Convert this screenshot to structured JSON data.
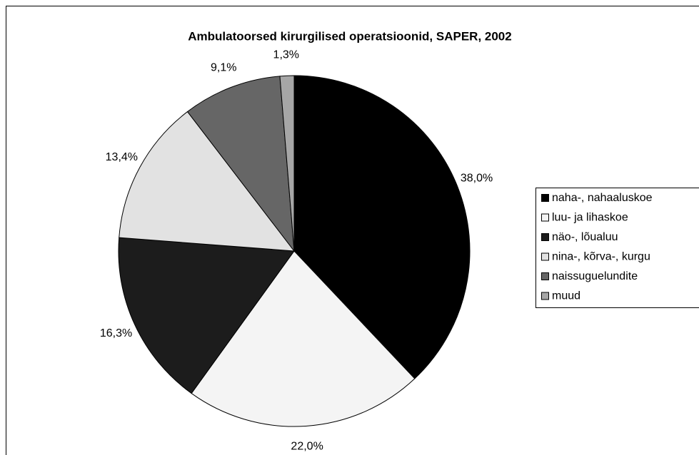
{
  "chart_data": {
    "type": "pie",
    "title": "Ambulatoorsed kirurgilised operatsioonid, SAPER, 2002",
    "categories": [
      "naha-, nahaaluskoe",
      "luu- ja lihaskoe",
      "näo-, lõualuu",
      "nina-, kõrva-, kurgu",
      "naissuguelundite",
      "muud"
    ],
    "values": [
      38.0,
      22.0,
      16.3,
      13.4,
      9.1,
      1.3
    ],
    "value_labels": [
      "38,0%",
      "22,0%",
      "16,3%",
      "13,4%",
      "9,1%",
      "1,3%"
    ],
    "colors": [
      "#000000",
      "#f4f4f4",
      "#1c1c1c",
      "#e2e2e2",
      "#666666",
      "#a6a6a6"
    ],
    "legend": "right"
  }
}
